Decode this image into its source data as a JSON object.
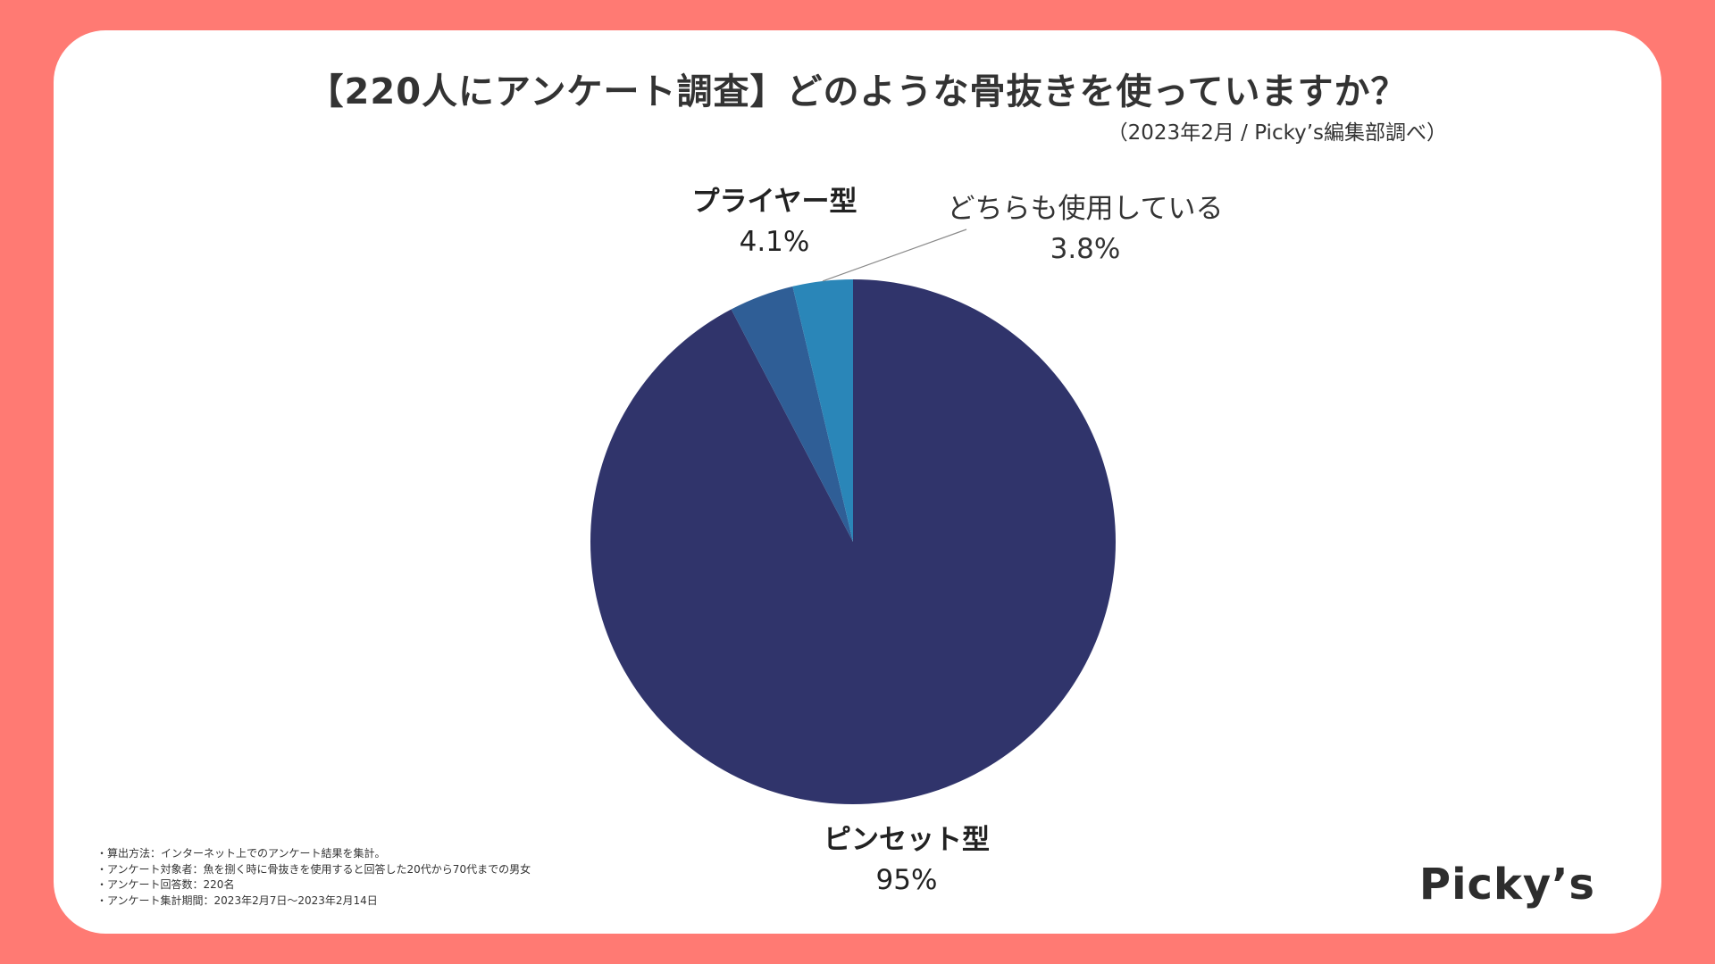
{
  "title": "【220人にアンケート調査】どのような骨抜きを使っていますか？",
  "subtitle": "（2023年2月 / Picky’s編集部調べ）",
  "chart_data": {
    "type": "pie",
    "title": "【220人にアンケート調査】どのような骨抜きを使っていますか？",
    "slices": [
      {
        "label": "ピンセット型",
        "value": 95,
        "display": "95%",
        "color": "#30346b"
      },
      {
        "label": "プライヤー型",
        "value": 4.1,
        "display": "4.1%",
        "color": "#2f5e96"
      },
      {
        "label": "どちらも使用している",
        "value": 3.8,
        "display": "3.8%",
        "color": "#2a86b8"
      }
    ]
  },
  "notes": [
    "算出方法：インターネット上でのアンケート結果を集計。",
    "アンケート対象者：魚を捌く時に骨抜きを使用すると回答した20代から70代までの男女",
    "アンケート回答数：220名",
    "アンケート集計期間：2023年2月7日〜2023年2月14日"
  ],
  "logo": "Picky’s"
}
